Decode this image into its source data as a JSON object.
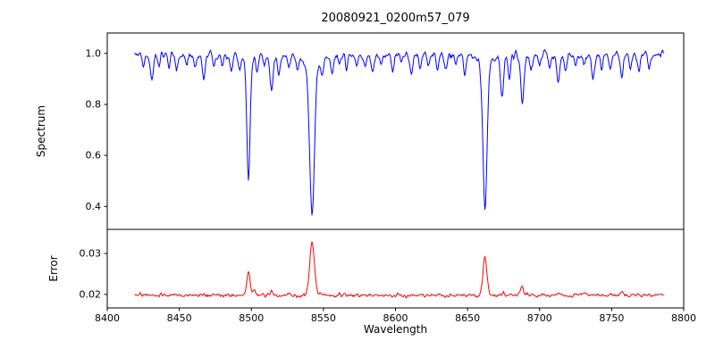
{
  "chart_data": {
    "type": "line",
    "title": "20080921_0200m57_079",
    "xlabel": "Wavelength",
    "grid": false,
    "legend": "none",
    "x_axis": {
      "lim": [
        8400,
        8800
      ],
      "ticks": [
        "8400",
        "8450",
        "8500",
        "8550",
        "8600",
        "8650",
        "8700",
        "8750",
        "8800"
      ]
    },
    "x_data_range": [
      8419,
      8786
    ],
    "x_step": 0.5,
    "colors": {
      "spectrum": "#0000ff",
      "error": "#ff0000",
      "spine": "#000000",
      "background": "#ffffff"
    },
    "panels": [
      {
        "name": "spectrum",
        "ylabel": "Spectrum",
        "color": "#0000ff",
        "ylim": [
          0.31,
          1.08
        ],
        "y_ticks": [
          "0.4",
          "0.6",
          "0.8",
          "1.0"
        ],
        "continuum": 0.995,
        "noise_amplitude": 0.012,
        "key_points": [
          [
            8498.0,
            0.52
          ],
          [
            8542.1,
            0.37
          ],
          [
            8662.1,
            0.39
          ],
          [
            8688,
            0.8
          ],
          [
            8514,
            0.85
          ],
          [
            8674,
            0.84
          ]
        ],
        "strong_lines": [
          {
            "center": 8498.0,
            "min": 0.52,
            "depth": 0.44,
            "sigma": 1.1,
            "wing": 0.04,
            "gamma": 2.5
          },
          {
            "center": 8542.1,
            "min": 0.37,
            "depth": 0.55,
            "sigma": 1.6,
            "wing": 0.08,
            "gamma": 4.0
          },
          {
            "center": 8662.1,
            "min": 0.39,
            "depth": 0.55,
            "sigma": 1.4,
            "wing": 0.06,
            "gamma": 3.5
          }
        ],
        "weak_lines": [
          [
            8425,
            0.04,
            0.9
          ],
          [
            8431,
            0.1,
            1.0
          ],
          [
            8436,
            0.05,
            0.8
          ],
          [
            8443,
            0.04,
            0.8
          ],
          [
            8448,
            0.06,
            0.9
          ],
          [
            8455,
            0.04,
            0.8
          ],
          [
            8461,
            0.05,
            0.8
          ],
          [
            8467,
            0.09,
            1.0
          ],
          [
            8474,
            0.05,
            0.8
          ],
          [
            8480,
            0.04,
            0.8
          ],
          [
            8486,
            0.06,
            0.9
          ],
          [
            8492,
            0.05,
            0.8
          ],
          [
            8504,
            0.07,
            0.9
          ],
          [
            8509,
            0.04,
            0.8
          ],
          [
            8514,
            0.14,
            1.1
          ],
          [
            8519,
            0.08,
            0.9
          ],
          [
            8526,
            0.04,
            0.8
          ],
          [
            8532,
            0.05,
            0.8
          ],
          [
            8549,
            0.05,
            0.8
          ],
          [
            8556,
            0.06,
            0.9
          ],
          [
            8561,
            0.04,
            0.8
          ],
          [
            8566,
            0.05,
            0.8
          ],
          [
            8573,
            0.04,
            0.8
          ],
          [
            8579,
            0.05,
            0.8
          ],
          [
            8584,
            0.07,
            0.9
          ],
          [
            8590,
            0.04,
            0.8
          ],
          [
            8598,
            0.06,
            0.9
          ],
          [
            8604,
            0.04,
            0.8
          ],
          [
            8611,
            0.08,
            1.0
          ],
          [
            8617,
            0.05,
            0.8
          ],
          [
            8623,
            0.04,
            0.8
          ],
          [
            8629,
            0.05,
            0.8
          ],
          [
            8635,
            0.06,
            0.9
          ],
          [
            8642,
            0.04,
            0.8
          ],
          [
            8648,
            0.07,
            0.9
          ],
          [
            8674,
            0.16,
            1.1
          ],
          [
            8679,
            0.09,
            0.9
          ],
          [
            8688,
            0.19,
            1.1
          ],
          [
            8694,
            0.06,
            0.9
          ],
          [
            8700,
            0.05,
            0.8
          ],
          [
            8707,
            0.04,
            0.8
          ],
          [
            8713,
            0.11,
            1.0
          ],
          [
            8718,
            0.07,
            0.9
          ],
          [
            8725,
            0.05,
            0.8
          ],
          [
            8731,
            0.04,
            0.8
          ],
          [
            8737,
            0.09,
            1.0
          ],
          [
            8743,
            0.05,
            0.8
          ],
          [
            8749,
            0.06,
            0.9
          ],
          [
            8757,
            0.09,
            1.0
          ],
          [
            8763,
            0.05,
            0.8
          ],
          [
            8769,
            0.06,
            0.9
          ],
          [
            8776,
            0.04,
            0.8
          ]
        ]
      },
      {
        "name": "error",
        "ylabel": "Error",
        "color": "#ff0000",
        "ylim": [
          0.0167,
          0.0359
        ],
        "y_ticks": [
          "0.02",
          "0.03"
        ],
        "baseline": 0.0198,
        "noise_amplitude": 0.0004,
        "key_points": [
          [
            8498,
            0.026
          ],
          [
            8542,
            0.0335
          ],
          [
            8662,
            0.0295
          ]
        ],
        "peaks": [
          [
            8498.0,
            0.006,
            1.2
          ],
          [
            8502.0,
            0.0012,
            0.8
          ],
          [
            8514.0,
            0.001,
            0.9
          ],
          [
            8542.1,
            0.013,
            1.6
          ],
          [
            8662.1,
            0.0092,
            1.4
          ],
          [
            8674.0,
            0.0008,
            1.0
          ],
          [
            8688.0,
            0.0018,
            1.0
          ],
          [
            8713.0,
            0.0006,
            1.0
          ],
          [
            8757.0,
            0.0007,
            1.0
          ]
        ]
      }
    ]
  }
}
